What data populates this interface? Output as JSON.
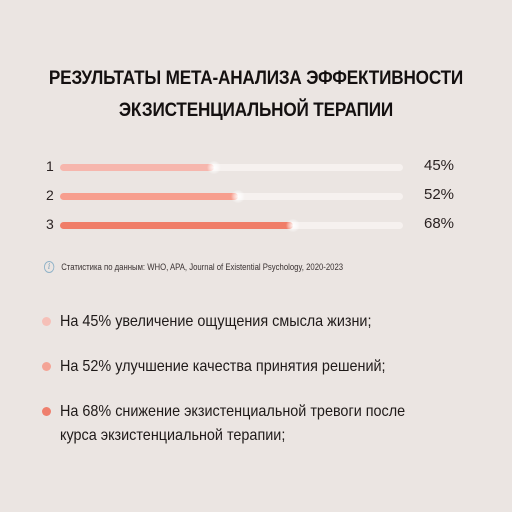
{
  "title": {
    "line1": "РЕЗУЛЬТАТЫ МЕТА-АНАЛИЗА ЭФФЕКТИВНОСТИ",
    "line2": "ЭКЗИСТЕНЦИАЛЬНОЙ ТЕРАПИИ"
  },
  "chart_data": {
    "type": "bar",
    "orientation": "horizontal",
    "categories": [
      "1",
      "2",
      "3"
    ],
    "values": [
      45,
      52,
      68
    ],
    "value_labels": [
      "45%",
      "52%",
      "68%"
    ],
    "xlim": [
      0,
      100
    ],
    "grid": false,
    "colors": [
      "#f6b6ad",
      "#f79e8e",
      "#f07d68"
    ]
  },
  "source": {
    "icon": "info-icon",
    "text": "Статистика по данным: WHO, APA, Journal of Existential Psychology, 2020-2023"
  },
  "bullets": [
    {
      "text": "На 45% увеличение ощущения смысла жизни;",
      "color": "#f6c0b8"
    },
    {
      "text": "На 52% улучшение качества принятия решений;",
      "color": "#f4a496"
    },
    {
      "text": "На 68% снижение экзистенциальной тревоги после курса экзистенциальной терапии;",
      "color": "#ef7f6d"
    }
  ]
}
